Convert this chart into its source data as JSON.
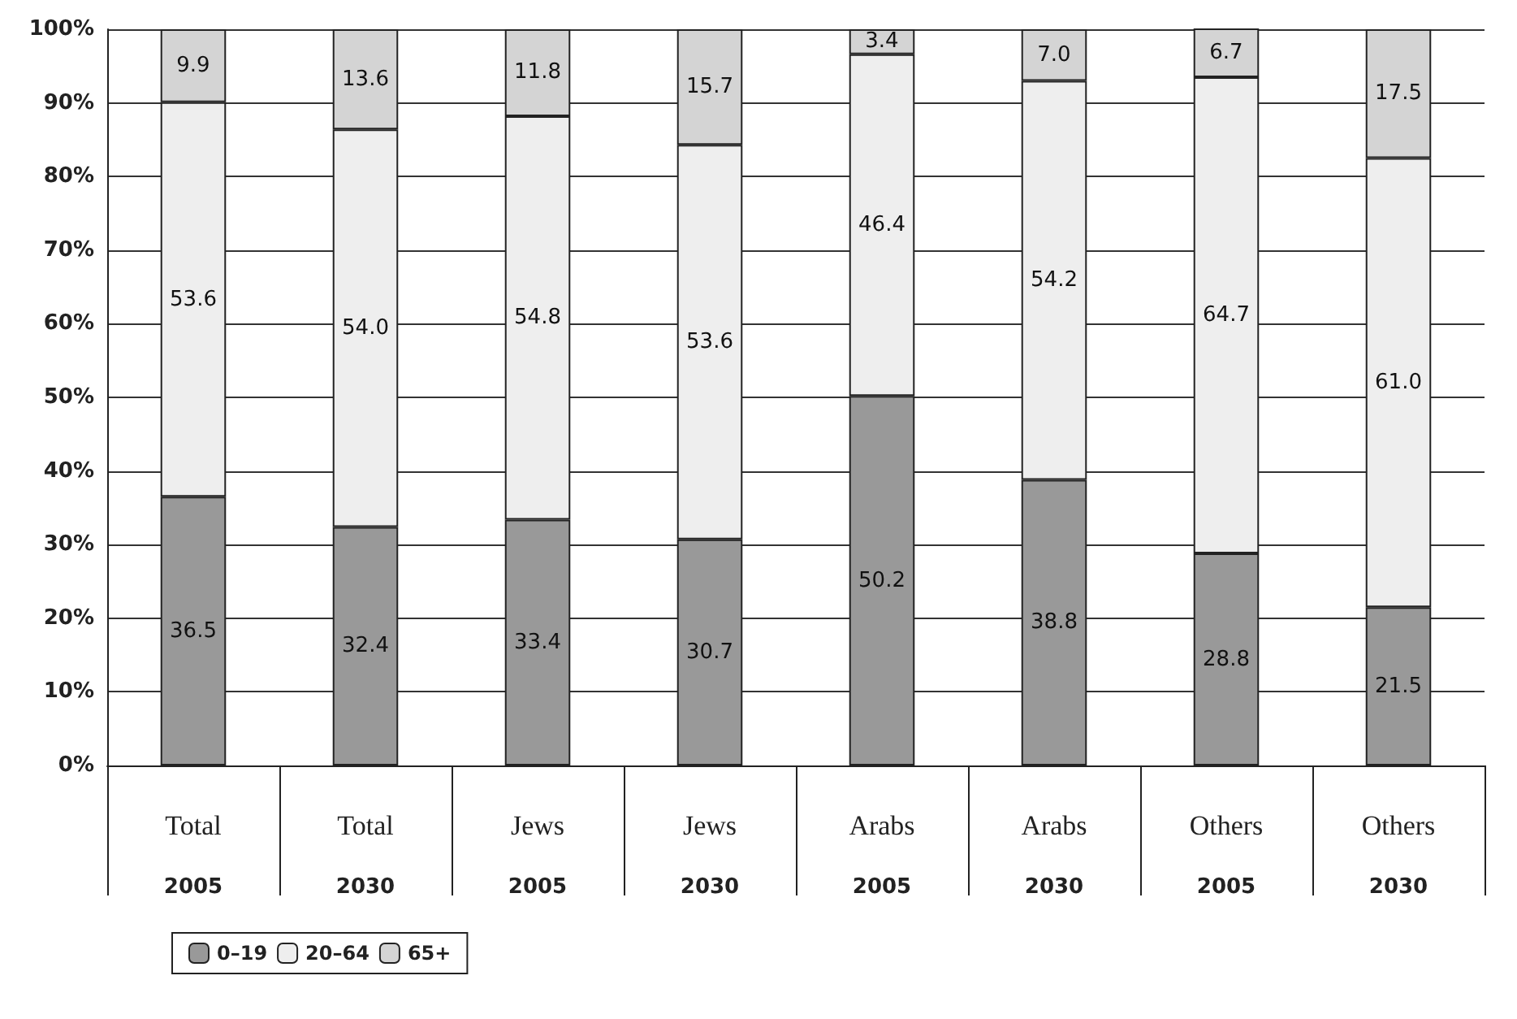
{
  "chart_data": {
    "type": "bar",
    "stacked": true,
    "categories": [
      "Total\n2005",
      "Total\n2030",
      "Jews\n2005",
      "Jews\n2030",
      "Arabs\n2005",
      "Arabs\n2030",
      "Others\n2005",
      "Others\n2030"
    ],
    "series": [
      {
        "name": "0–19",
        "color": "#999999",
        "values": [
          36.5,
          32.4,
          33.4,
          30.7,
          50.2,
          38.8,
          28.8,
          21.5
        ]
      },
      {
        "name": "20–64",
        "color": "#eeeeee",
        "values": [
          53.6,
          54.0,
          54.8,
          53.6,
          46.4,
          54.2,
          64.7,
          61.0
        ]
      },
      {
        "name": "65+",
        "color": "#d4d4d4",
        "values": [
          9.9,
          13.6,
          11.8,
          15.7,
          3.4,
          7.0,
          6.7,
          17.5
        ]
      }
    ],
    "value_labels": [
      [
        "36.5",
        "32.4",
        "33.4",
        "30.7",
        "50.2",
        "38.8",
        "28.8",
        "21.5"
      ],
      [
        "53.6",
        "54.0",
        "54.8",
        "53.6",
        "46.4",
        "54.2",
        "64.7",
        "61.0"
      ],
      [
        "9.9",
        "13.6",
        "11.8",
        "15.7",
        "3.4",
        "7.0",
        "6.7",
        "17.5"
      ]
    ],
    "ylim": [
      0,
      100
    ],
    "yticks": [
      {
        "value": 0,
        "label": "0%"
      },
      {
        "value": 10,
        "label": "10%"
      },
      {
        "value": 20,
        "label": "20%"
      },
      {
        "value": 30,
        "label": "30%"
      },
      {
        "value": 40,
        "label": "40%"
      },
      {
        "value": 50,
        "label": "50%"
      },
      {
        "value": 60,
        "label": "60%"
      },
      {
        "value": 70,
        "label": "70%"
      },
      {
        "value": 80,
        "label": "80%"
      },
      {
        "value": 90,
        "label": "90%"
      },
      {
        "value": 100,
        "label": "100%"
      }
    ],
    "grid": "y",
    "legend": "bottom left"
  }
}
